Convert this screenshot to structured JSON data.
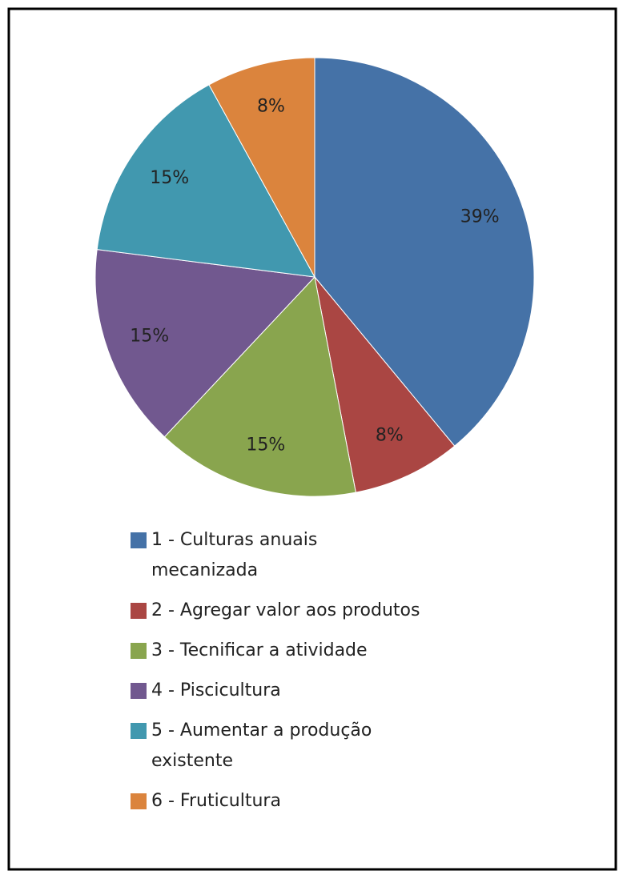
{
  "chart_data": {
    "type": "pie",
    "categories": [
      "1 - Culturas anuais mecanizada",
      "2 - Agregar valor aos produtos",
      "3 - Tecnificar a atividade",
      "4 - Piscicultura",
      "5 - Aumentar a produção existente",
      "6 - Fruticultura"
    ],
    "values": [
      39,
      8,
      15,
      15,
      15,
      8
    ],
    "value_labels": [
      "39%",
      "8%",
      "15%",
      "15%",
      "15%",
      "8%"
    ],
    "colors": [
      "#4572a7",
      "#aa4643",
      "#89a54e",
      "#71588f",
      "#4198af",
      "#db843d"
    ],
    "legend": "bottom"
  }
}
